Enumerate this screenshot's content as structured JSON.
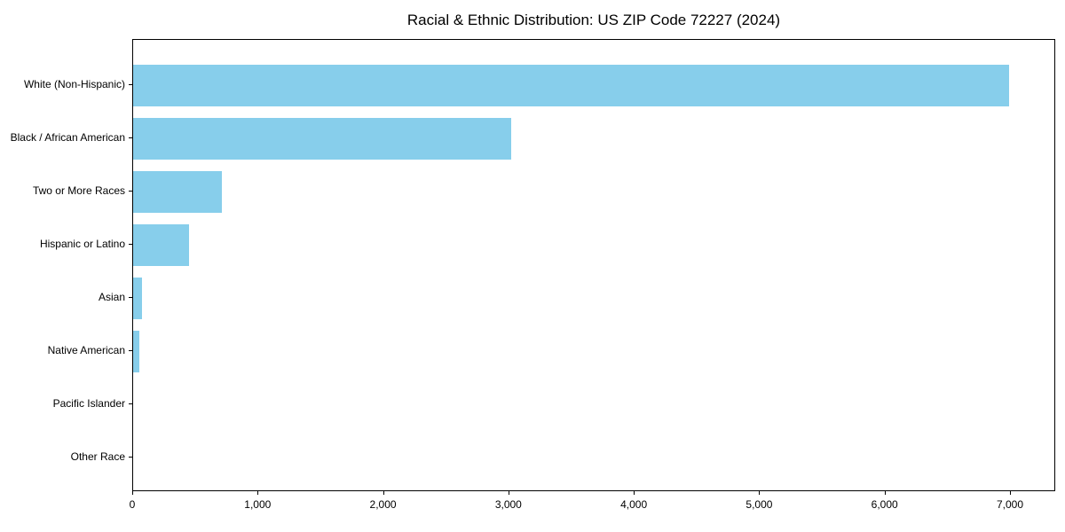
{
  "title": "Racial & Ethnic Distribution: US ZIP Code 72227 (2024)",
  "colors": {
    "bar": "#87CEEB",
    "axis": "#000000",
    "text": "#000000",
    "background": "#FFFFFF"
  },
  "chart_data": {
    "type": "bar",
    "orientation": "horizontal",
    "title": "Racial & Ethnic Distribution: US ZIP Code 72227 (2024)",
    "xlabel": "",
    "ylabel": "",
    "categories": [
      "White (Non-Hispanic)",
      "Black / African American",
      "Two or More Races",
      "Hispanic or Latino",
      "Asian",
      "Native American",
      "Pacific Islander",
      "Other Race"
    ],
    "values": [
      6985,
      3015,
      710,
      445,
      70,
      50,
      0,
      0
    ],
    "xlim": [
      0,
      7354
    ],
    "xticks": [
      0,
      1000,
      2000,
      3000,
      4000,
      5000,
      6000,
      7000
    ],
    "xtick_labels": [
      "0",
      "1,000",
      "2,000",
      "3,000",
      "4,000",
      "5,000",
      "6,000",
      "7,000"
    ],
    "grid": false,
    "legend": null,
    "bar_color": "#87CEEB"
  }
}
